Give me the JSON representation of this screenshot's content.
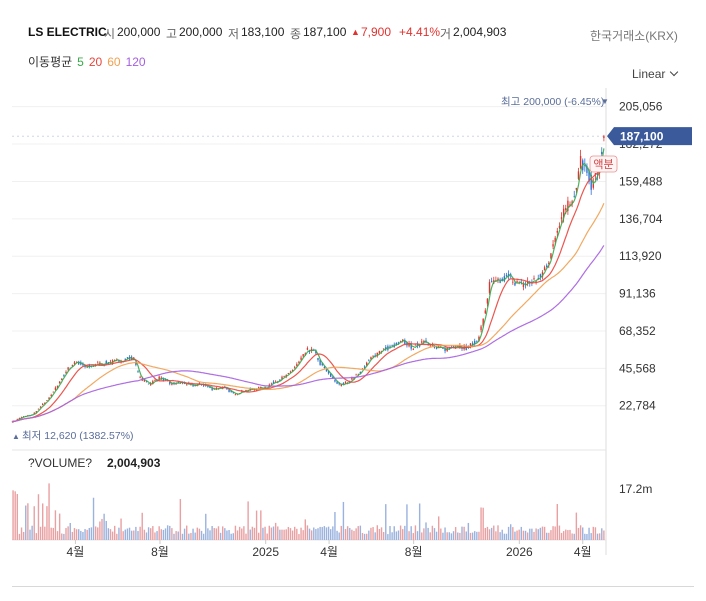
{
  "header": {
    "name": "LS ELECTRIC",
    "open_label": "시",
    "open": "200,000",
    "high_label": "고",
    "high": "200,000",
    "low_label": "저",
    "low": "183,100",
    "close_label": "종",
    "close": "187,100",
    "change": "7,900",
    "change_pct": "+4.41%",
    "volume_label": "거",
    "volume": "2,004,903",
    "exchange": "한국거래소(KRX)"
  },
  "ma_legend": {
    "label": "이동평균",
    "items": [
      {
        "text": "5",
        "color": "#3aa84a"
      },
      {
        "text": "20",
        "color": "#e8453c"
      },
      {
        "text": "60",
        "color": "#f0a050"
      },
      {
        "text": "120",
        "color": "#a55ee0"
      }
    ]
  },
  "scale_button": "Linear",
  "colors": {
    "up": "#e0332f",
    "down": "#2f6fd6",
    "ma5": "#3aa84a",
    "ma20": "#e8453c",
    "ma60": "#f0a050",
    "ma120": "#a55ee0",
    "price_tag": "#3a5a9c",
    "extreme_label": "#5a6e9a",
    "vol_up": "#e9a0a2",
    "vol_down": "#9ab2de"
  },
  "chart_data": {
    "type": "line",
    "y_ticks": [
      "205,056",
      "182,272",
      "159,488",
      "136,704",
      "113,920",
      "91,136",
      "68,352",
      "45,568",
      "22,784"
    ],
    "y_tick_values": [
      205056,
      182272,
      159488,
      136704,
      113920,
      91136,
      68352,
      45568,
      22784
    ],
    "ylim": [
      8000,
      214000
    ],
    "x_ticks": [
      "4월",
      "8월",
      "2025",
      "4월",
      "8월",
      "2026",
      "4월"
    ],
    "x_tick_months": [
      3,
      7,
      12,
      15,
      19,
      24,
      27
    ],
    "x_range_months": [
      0,
      28.1
    ],
    "price_tag": "187,100",
    "max_label": "최고 200,000 (-6.45%)",
    "min_label": "최저 12,620 (1382.57%)",
    "badge": "액분",
    "volume_title": "?VOLUME?",
    "volume_value": "2,004,903",
    "volume_tick": "17.2m",
    "volume_tick_value": 17200000,
    "volume_max": 22000000,
    "price_anchors": [
      [
        0.0,
        13000
      ],
      [
        0.5,
        16000
      ],
      [
        1.0,
        17500
      ],
      [
        1.5,
        24000
      ],
      [
        2.0,
        32000
      ],
      [
        2.5,
        43000
      ],
      [
        3.0,
        50000
      ],
      [
        3.5,
        46000
      ],
      [
        4.0,
        48000
      ],
      [
        5.0,
        50000
      ],
      [
        5.5,
        52000
      ],
      [
        5.8,
        51000
      ],
      [
        6.0,
        40000
      ],
      [
        6.5,
        36000
      ],
      [
        7.0,
        40000
      ],
      [
        7.5,
        36000
      ],
      [
        8.0,
        37000
      ],
      [
        8.5,
        35000
      ],
      [
        9.0,
        36000
      ],
      [
        9.5,
        33000
      ],
      [
        10.0,
        34000
      ],
      [
        10.5,
        30000
      ],
      [
        11.0,
        32000
      ],
      [
        11.5,
        33000
      ],
      [
        12.0,
        34000
      ],
      [
        12.5,
        38000
      ],
      [
        13.0,
        41000
      ],
      [
        13.5,
        48000
      ],
      [
        14.0,
        57000
      ],
      [
        14.3,
        56000
      ],
      [
        14.6,
        48000
      ],
      [
        15.0,
        42000
      ],
      [
        15.5,
        35000
      ],
      [
        16.0,
        38000
      ],
      [
        16.5,
        44000
      ],
      [
        17.0,
        52000
      ],
      [
        17.5,
        57000
      ],
      [
        18.0,
        59000
      ],
      [
        18.5,
        62000
      ],
      [
        19.0,
        58000
      ],
      [
        19.5,
        63000
      ],
      [
        20.0,
        58000
      ],
      [
        20.5,
        57000
      ],
      [
        21.0,
        60000
      ],
      [
        21.5,
        58000
      ],
      [
        22.0,
        62000
      ],
      [
        22.3,
        75000
      ],
      [
        22.6,
        97000
      ],
      [
        23.0,
        98000
      ],
      [
        23.5,
        102000
      ],
      [
        24.0,
        96000
      ],
      [
        24.5,
        98000
      ],
      [
        25.0,
        101000
      ],
      [
        25.5,
        115000
      ],
      [
        25.8,
        132000
      ],
      [
        26.1,
        142000
      ],
      [
        26.4,
        147000
      ],
      [
        26.7,
        155000
      ],
      [
        26.9,
        172000
      ],
      [
        27.1,
        167000
      ],
      [
        27.4,
        158000
      ],
      [
        27.7,
        163000
      ],
      [
        28.0,
        187100
      ]
    ]
  }
}
